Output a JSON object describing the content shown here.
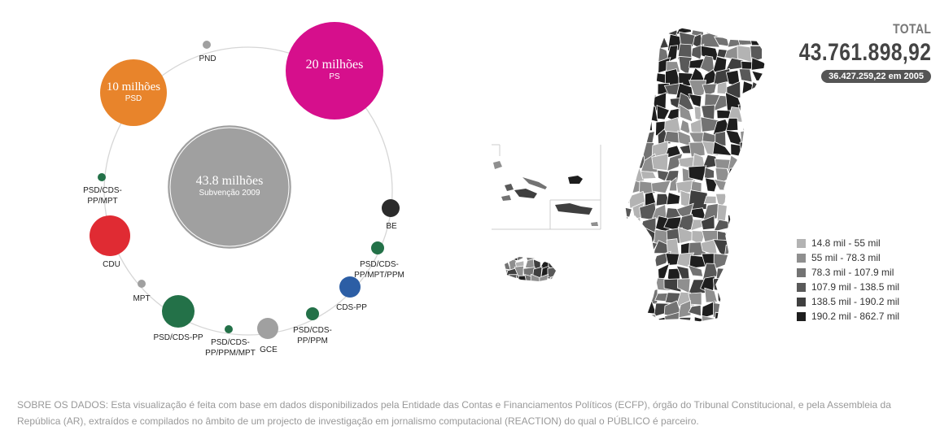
{
  "total": {
    "label": "TOTAL",
    "value": "43.761.898,92",
    "value_2005": "36.427.259,22 em 2005"
  },
  "chart_data": {
    "type": "bubble",
    "center": {
      "value_label": "43.8 milhões",
      "label": "Subvenção 2009",
      "color": "#a0a0a0"
    },
    "parties": [
      {
        "label": "PS",
        "value_label": "20 milhões",
        "color": "#d60f8c",
        "group": "big"
      },
      {
        "label": "BE",
        "color": "#2b2b2b",
        "group": "small"
      },
      {
        "label": "PSD/CDS-PP/MPT/PPM",
        "color": "#237148",
        "group": "small"
      },
      {
        "label": "CDS-PP",
        "color": "#2c5ea5",
        "group": "small"
      },
      {
        "label": "PSD/CDS-PP/PPM",
        "color": "#237148",
        "group": "small"
      },
      {
        "label": "GCE",
        "color": "#a0a0a0",
        "group": "small"
      },
      {
        "label": "PSD/CDS-PP/PPM/MPT",
        "color": "#237148",
        "group": "small"
      },
      {
        "label": "PSD/CDS-PP",
        "color": "#237148",
        "group": "small"
      },
      {
        "label": "MPT",
        "color": "#a0a0a0",
        "group": "small"
      },
      {
        "label": "CDU",
        "color": "#e02b33",
        "group": "small"
      },
      {
        "label": "PSD/CDS-PP/MPT",
        "color": "#237148",
        "group": "small"
      },
      {
        "label": "PSD",
        "value_label": "10 milhões",
        "color": "#e8842b",
        "group": "big"
      },
      {
        "label": "PND",
        "color": "#a0a0a0",
        "group": "small"
      }
    ]
  },
  "map_legend": [
    {
      "label": "14.8 mil - 55 mil",
      "color": "#b3b3b3"
    },
    {
      "label": "55 mil - 78.3 mil",
      "color": "#8f8f8f"
    },
    {
      "label": "78.3 mil - 107.9 mil",
      "color": "#737373"
    },
    {
      "label": "107.9 mil - 138.5 mil",
      "color": "#595959"
    },
    {
      "label": "138.5 mil - 190.2 mil",
      "color": "#3f3f3f"
    },
    {
      "label": "190.2 mil - 862.7 mil",
      "color": "#1e1e1e"
    }
  ],
  "footer": {
    "text": "SOBRE OS DADOS: Esta visualização é feita com base em dados disponibilizados pela Entidade das Contas e Financiamentos Políticos (ECFP), órgão do Tribunal Constitucional, e pela Assembleia da República (AR), extraídos e compilados no âmbito de um projecto de investigação em jornalismo computacional (REACTION) do qual o PÚBLICO é parceiro."
  }
}
